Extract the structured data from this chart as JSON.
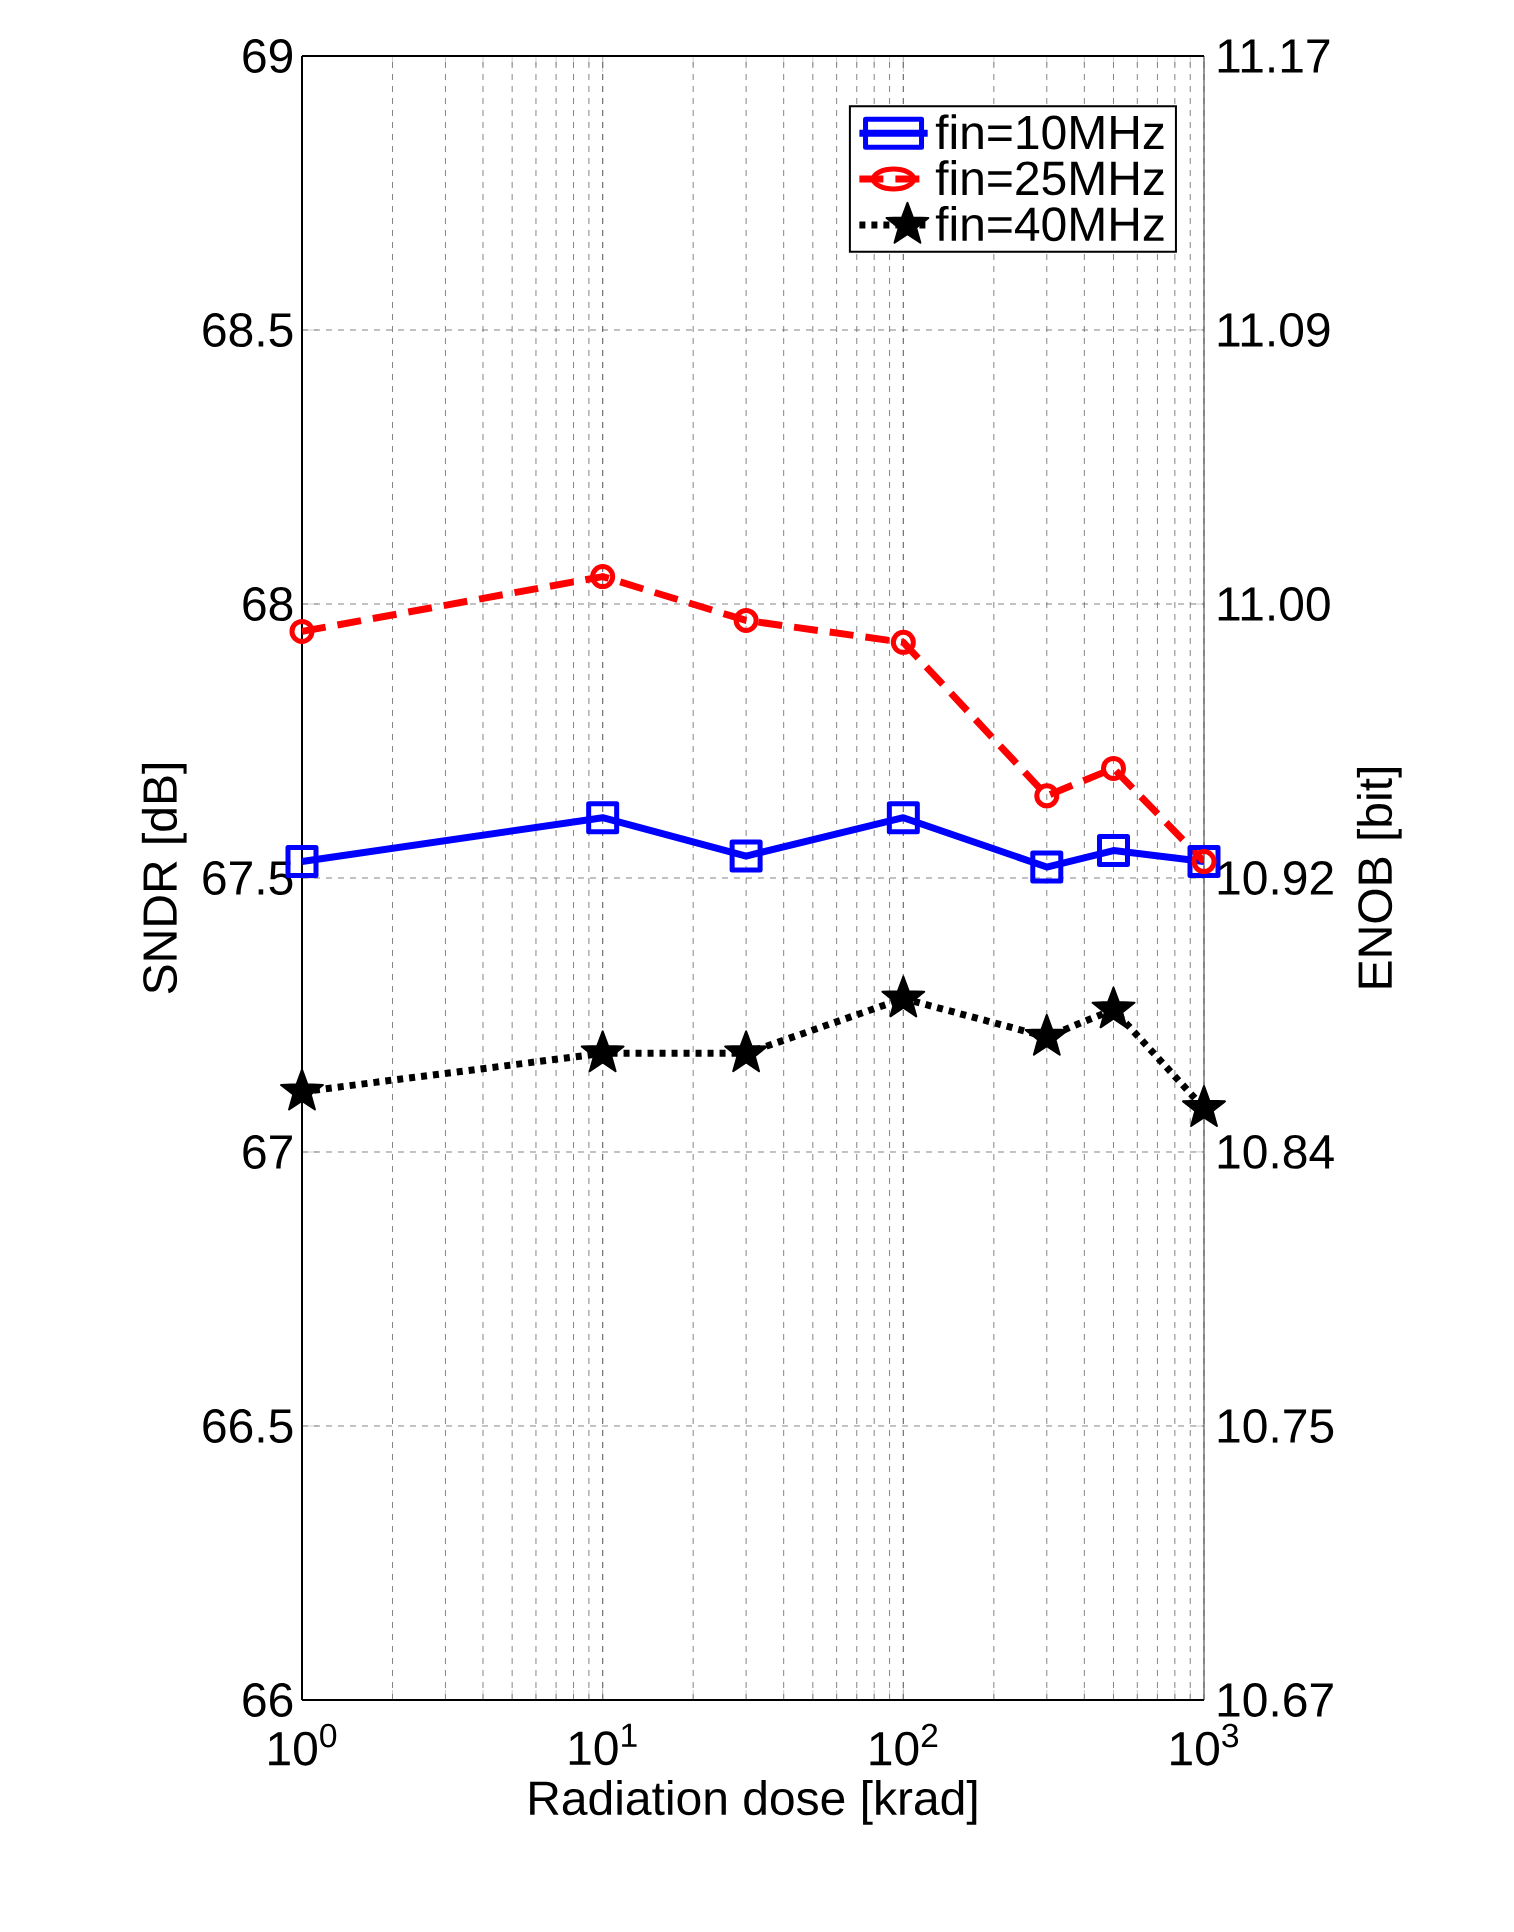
{
  "chart_data": {
    "type": "line",
    "xlabel": "Radiation dose [krad]",
    "ylabel": "SNDR [dB]",
    "y2label": "ENOB [bit]",
    "x": [
      1,
      10,
      30,
      100,
      300,
      500,
      1000
    ],
    "series": [
      {
        "name": "fin=10MHz",
        "color": "#0000ff",
        "marker": "square",
        "line_style": "solid",
        "values": [
          67.53,
          67.61,
          67.54,
          67.61,
          67.52,
          67.55,
          67.53
        ]
      },
      {
        "name": "fin=25MHz",
        "color": "#ff0000",
        "marker": "circle",
        "line_style": "dashed",
        "values": [
          67.95,
          68.05,
          67.97,
          67.93,
          67.65,
          67.7,
          67.53
        ]
      },
      {
        "name": "fin=40MHz",
        "color": "#000000",
        "marker": "star",
        "line_style": "dotted",
        "values": [
          67.11,
          67.18,
          67.18,
          67.28,
          67.21,
          67.26,
          67.08
        ]
      }
    ],
    "log": "x",
    "xlim": [
      1,
      1000
    ],
    "xticks": [
      {
        "value": 1,
        "label": "10$^{0}$"
      },
      {
        "value": 10,
        "label": "10$^{1}$"
      },
      {
        "value": 100,
        "label": "10$^{2}$"
      },
      {
        "value": 1000,
        "label": "10$^{3}$"
      }
    ],
    "ylim": [
      66,
      69
    ],
    "yticks": [
      66,
      66.5,
      67,
      67.5,
      68,
      68.5,
      69
    ],
    "y2lim": [
      10.67,
      11.17
    ],
    "y2ticks": [
      10.67,
      {
        "value": 10.7533,
        "label": "10.75"
      },
      {
        "value": 10.8367,
        "label": "10.84"
      },
      10.92,
      {
        "value": 11.0033,
        "label": "11.00"
      },
      {
        "value": 11.0867,
        "label": "11.09"
      },
      11.17
    ],
    "grid": true,
    "legend": "top right"
  }
}
